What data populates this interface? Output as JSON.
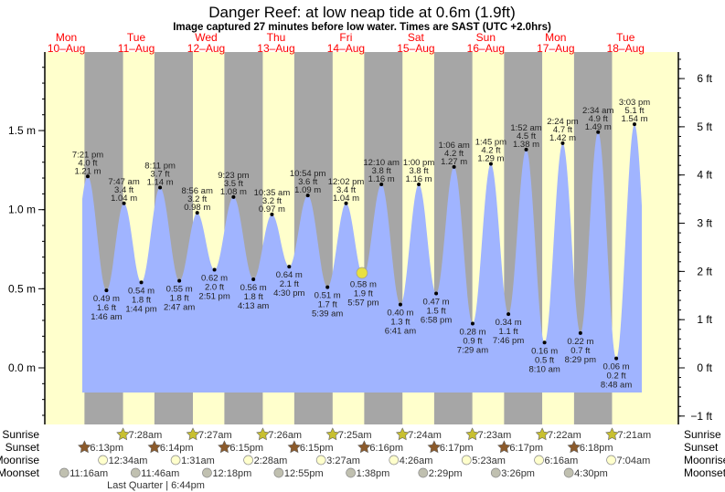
{
  "chart_data": {
    "type": "area",
    "title": "Danger Reef: at low  neap tide at 0.6m (1.9ft)",
    "subtitle": "Image captured 27 minutes before low water. Times are SAST (UTC +2.0hrs)",
    "left_axis": {
      "unit": "m",
      "ticks": [
        "0.0 m",
        "0.5 m",
        "1.0 m",
        "1.5 m"
      ],
      "tick_values": [
        0,
        0.5,
        1.0,
        1.5
      ]
    },
    "right_axis": {
      "unit": "ft",
      "ticks": [
        "−1 ft",
        "0 ft",
        "1 ft",
        "2 ft",
        "3 ft",
        "4 ft",
        "5 ft",
        "6 ft"
      ],
      "tick_values": [
        -1,
        0,
        1,
        2,
        3,
        4,
        5,
        6
      ]
    },
    "days": [
      {
        "dow": "Mon",
        "date": "10–Aug",
        "day": 10
      },
      {
        "dow": "Tue",
        "date": "11–Aug",
        "day": 11
      },
      {
        "dow": "Wed",
        "date": "12–Aug",
        "day": 12
      },
      {
        "dow": "Thu",
        "date": "13–Aug",
        "day": 13
      },
      {
        "dow": "Fri",
        "date": "14–Aug",
        "day": 14
      },
      {
        "dow": "Sat",
        "date": "15–Aug",
        "day": 15
      },
      {
        "dow": "Sun",
        "date": "16–Aug",
        "day": 16
      },
      {
        "dow": "Mon",
        "date": "17–Aug",
        "day": 17
      },
      {
        "dow": "Tue",
        "date": "18–Aug",
        "day": 18
      }
    ],
    "tides": [
      {
        "day": 10,
        "time": "7:21 pm",
        "ft": "4.0 ft",
        "m": 1.21,
        "type": "high"
      },
      {
        "day": 11,
        "time": "1:46 am",
        "ft": "1.6 ft",
        "m": 0.49,
        "type": "low"
      },
      {
        "day": 11,
        "time": "7:47 am",
        "ft": "3.4 ft",
        "m": 1.04,
        "type": "high"
      },
      {
        "day": 11,
        "time": "1:44 pm",
        "ft": "1.8 ft",
        "m": 0.54,
        "type": "low"
      },
      {
        "day": 11,
        "time": "8:11 pm",
        "ft": "3.7 ft",
        "m": 1.14,
        "type": "high"
      },
      {
        "day": 12,
        "time": "2:47 am",
        "ft": "1.8 ft",
        "m": 0.55,
        "type": "low"
      },
      {
        "day": 12,
        "time": "8:56 am",
        "ft": "3.2 ft",
        "m": 0.98,
        "type": "high"
      },
      {
        "day": 12,
        "time": "2:51 pm",
        "ft": "2.0 ft",
        "m": 0.62,
        "type": "low"
      },
      {
        "day": 12,
        "time": "9:23 pm",
        "ft": "3.5 ft",
        "m": 1.08,
        "type": "high"
      },
      {
        "day": 13,
        "time": "4:13 am",
        "ft": "1.8 ft",
        "m": 0.56,
        "type": "low"
      },
      {
        "day": 13,
        "time": "10:35 am",
        "ft": "3.2 ft",
        "m": 0.97,
        "type": "high"
      },
      {
        "day": 13,
        "time": "4:30 pm",
        "ft": "2.1 ft",
        "m": 0.64,
        "type": "low"
      },
      {
        "day": 13,
        "time": "10:54 pm",
        "ft": "3.6 ft",
        "m": 1.09,
        "type": "high"
      },
      {
        "day": 14,
        "time": "5:39 am",
        "ft": "1.7 ft",
        "m": 0.51,
        "type": "low"
      },
      {
        "day": 14,
        "time": "12:02 pm",
        "ft": "3.4 ft",
        "m": 1.04,
        "type": "high"
      },
      {
        "day": 14,
        "time": "5:57 pm",
        "ft": "1.9 ft",
        "m": 0.58,
        "type": "low"
      },
      {
        "day": 15,
        "time": "12:10 am",
        "ft": "3.8 ft",
        "m": 1.16,
        "type": "high"
      },
      {
        "day": 15,
        "time": "6:41 am",
        "ft": "1.3 ft",
        "m": 0.4,
        "type": "low"
      },
      {
        "day": 15,
        "time": "1:00 pm",
        "ft": "3.8 ft",
        "m": 1.16,
        "type": "high"
      },
      {
        "day": 15,
        "time": "6:58 pm",
        "ft": "1.5 ft",
        "m": 0.47,
        "type": "low"
      },
      {
        "day": 16,
        "time": "1:06 am",
        "ft": "4.2 ft",
        "m": 1.27,
        "type": "high"
      },
      {
        "day": 16,
        "time": "7:29 am",
        "ft": "0.9 ft",
        "m": 0.28,
        "type": "low"
      },
      {
        "day": 16,
        "time": "1:45 pm",
        "ft": "4.2 ft",
        "m": 1.29,
        "type": "high"
      },
      {
        "day": 16,
        "time": "7:46 pm",
        "ft": "1.1 ft",
        "m": 0.34,
        "type": "low"
      },
      {
        "day": 17,
        "time": "1:52 am",
        "ft": "4.5 ft",
        "m": 1.38,
        "type": "high"
      },
      {
        "day": 17,
        "time": "8:10 am",
        "ft": "0.5 ft",
        "m": 0.16,
        "type": "low"
      },
      {
        "day": 17,
        "time": "2:24 pm",
        "ft": "4.7 ft",
        "m": 1.42,
        "type": "high"
      },
      {
        "day": 17,
        "time": "8:29 pm",
        "ft": "0.7 ft",
        "m": 0.22,
        "type": "low"
      },
      {
        "day": 18,
        "time": "2:34 am",
        "ft": "4.9 ft",
        "m": 1.49,
        "type": "high"
      },
      {
        "day": 18,
        "time": "8:48 am",
        "ft": "0.2 ft",
        "m": 0.06,
        "type": "low"
      },
      {
        "day": 18,
        "time": "3:03 pm",
        "ft": "5.1 ft",
        "m": 1.54,
        "type": "high"
      }
    ],
    "current_marker": {
      "day": 14,
      "time": "5:30 pm",
      "m": 0.6
    },
    "rows": {
      "sunrise": {
        "label": "Sunrise",
        "events": [
          {
            "day": 11,
            "time": "7:28am"
          },
          {
            "day": 12,
            "time": "7:27am"
          },
          {
            "day": 13,
            "time": "7:26am"
          },
          {
            "day": 14,
            "time": "7:25am"
          },
          {
            "day": 15,
            "time": "7:24am"
          },
          {
            "day": 16,
            "time": "7:23am"
          },
          {
            "day": 17,
            "time": "7:22am"
          },
          {
            "day": 18,
            "time": "7:21am"
          }
        ]
      },
      "sunset": {
        "label": "Sunset",
        "events": [
          {
            "day": 10,
            "time": "6:13pm"
          },
          {
            "day": 11,
            "time": "6:14pm"
          },
          {
            "day": 12,
            "time": "6:15pm"
          },
          {
            "day": 13,
            "time": "6:15pm"
          },
          {
            "day": 14,
            "time": "6:16pm"
          },
          {
            "day": 15,
            "time": "6:17pm"
          },
          {
            "day": 16,
            "time": "6:17pm"
          },
          {
            "day": 17,
            "time": "6:18pm"
          }
        ]
      },
      "moonrise": {
        "label": "Moonrise",
        "events": [
          {
            "day": 11,
            "time": "12:34am"
          },
          {
            "day": 12,
            "time": "1:31am"
          },
          {
            "day": 13,
            "time": "2:28am"
          },
          {
            "day": 14,
            "time": "3:27am"
          },
          {
            "day": 15,
            "time": "4:26am"
          },
          {
            "day": 16,
            "time": "5:23am"
          },
          {
            "day": 17,
            "time": "6:16am"
          },
          {
            "day": 18,
            "time": "7:04am"
          }
        ]
      },
      "moonset": {
        "label": "Moonset",
        "events": [
          {
            "day": 10,
            "time": "11:16am"
          },
          {
            "day": 11,
            "time": "11:46am"
          },
          {
            "day": 12,
            "time": "12:18pm"
          },
          {
            "day": 13,
            "time": "12:55pm"
          },
          {
            "day": 14,
            "time": "1:38pm"
          },
          {
            "day": 15,
            "time": "2:29pm"
          },
          {
            "day": 16,
            "time": "3:26pm"
          },
          {
            "day": 17,
            "time": "4:30pm"
          }
        ]
      }
    },
    "moon_phase": {
      "text": "Last Quarter | 6:44pm",
      "day": 11,
      "time": "6:44pm"
    },
    "colors": {
      "day": "#ffffcc",
      "night": "#a6a6a6",
      "water": "#a0b4ff",
      "day_label": "#ff0000",
      "sunrise_icon": "#c8c030",
      "sunset_icon": "#8b5a2b",
      "moonrise_icon": "#ffffcc",
      "moonset_icon": "#c0c0b0",
      "marker": "#e8e040"
    }
  }
}
